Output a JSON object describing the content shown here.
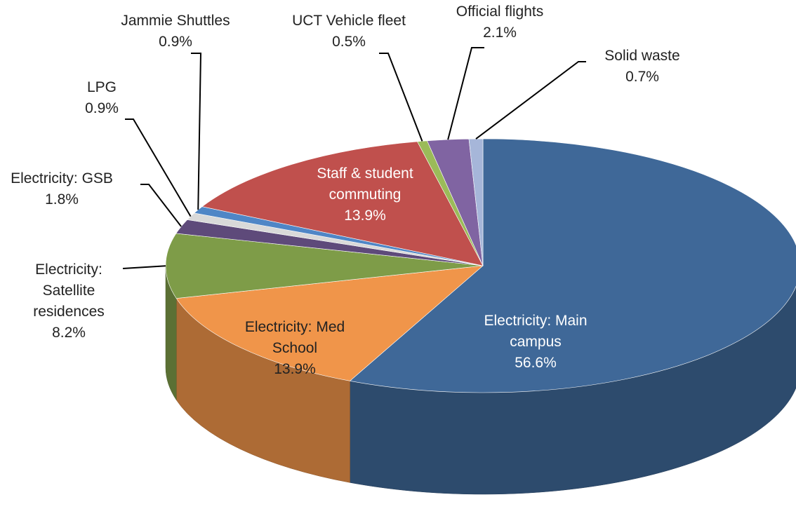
{
  "chart_data": {
    "type": "pie",
    "categories": [
      "Electricity: Main campus",
      "Electricity: Med School",
      "Electricity: Satellite residences",
      "Electricity: GSB",
      "LPG",
      "Jammie Shuttles",
      "Staff & student commuting",
      "UCT Vehicle fleet",
      "Official flights",
      "Solid waste"
    ],
    "values": [
      56.6,
      13.9,
      8.2,
      1.8,
      0.9,
      0.9,
      13.9,
      0.5,
      2.1,
      0.7
    ],
    "value_labels": [
      "56.6%",
      "13.9%",
      "8.2%",
      "1.8%",
      "0.9%",
      "0.9%",
      "13.9%",
      "0.5%",
      "2.1%",
      "0.7%"
    ],
    "colors": [
      "#3f6898",
      "#f0954a",
      "#7e9c48",
      "#5e4a7a",
      "#d9d9d9",
      "#4f86c6",
      "#c0504d",
      "#9bbb59",
      "#8064a2",
      "#a6b6d9"
    ]
  }
}
